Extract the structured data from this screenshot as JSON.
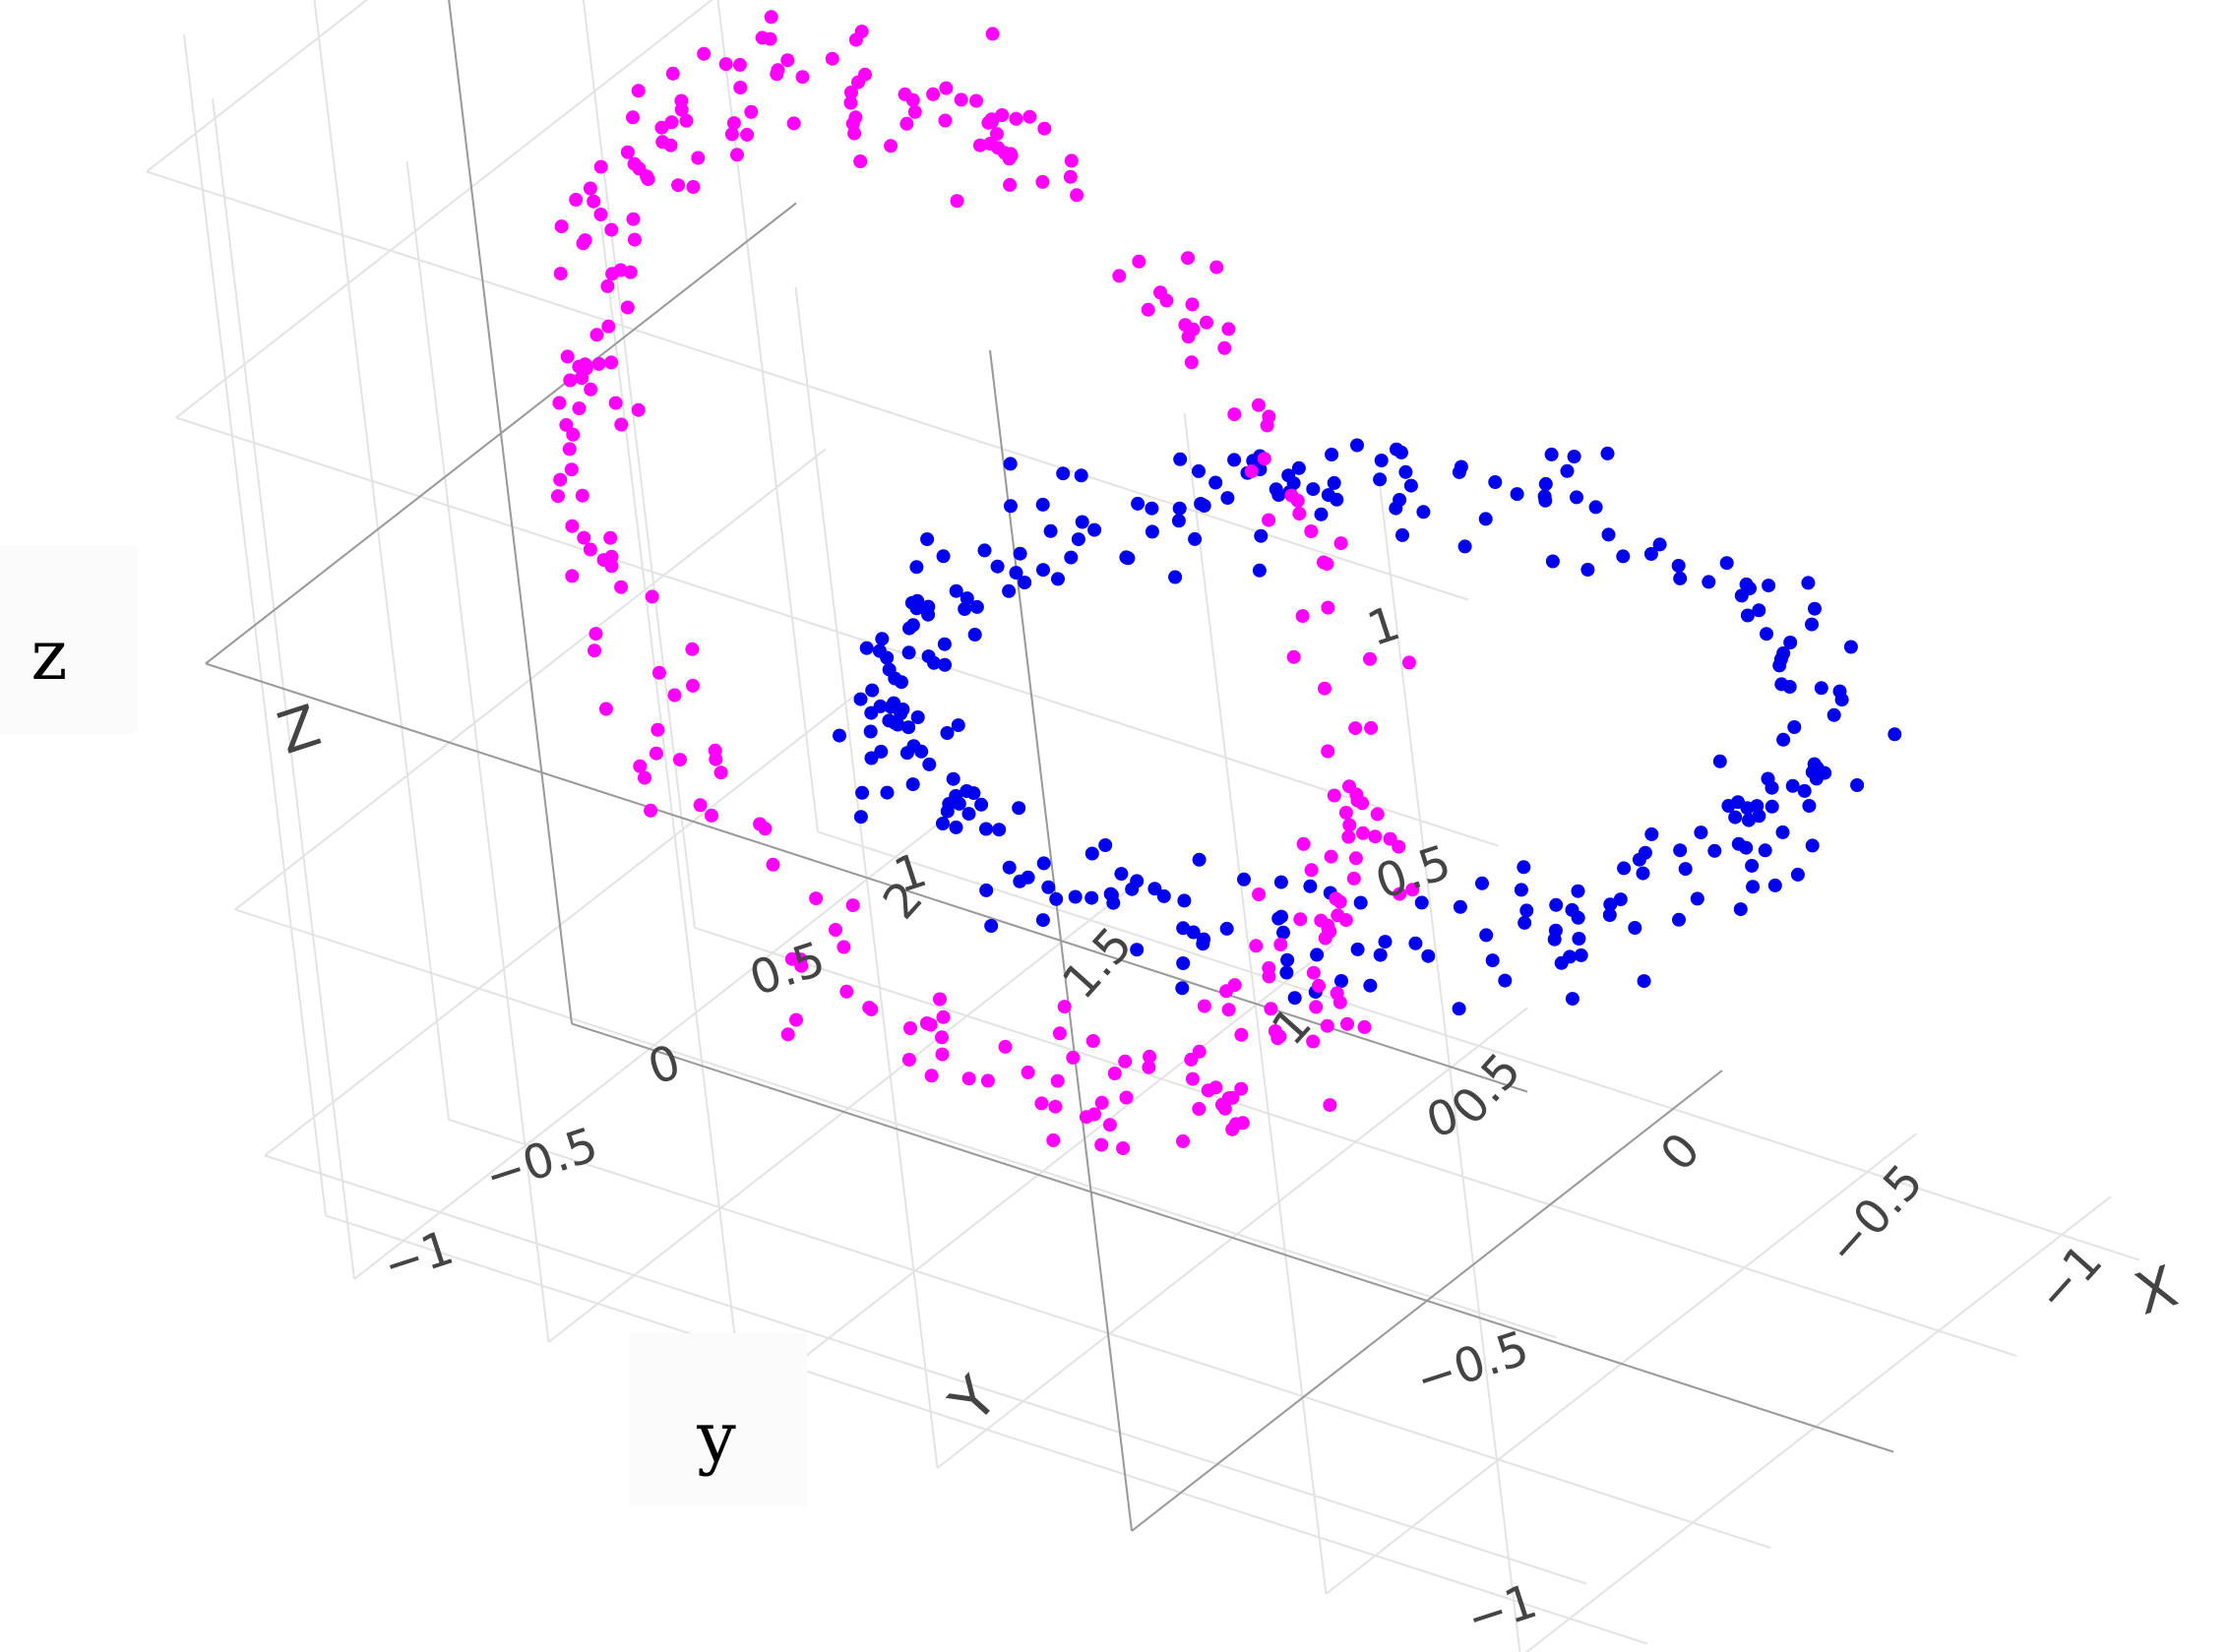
{
  "chart_data": {
    "type": "scatter3d",
    "axes": {
      "x": {
        "title": "X",
        "ticks": [
          -1,
          -0.5,
          0,
          0.5,
          1
        ],
        "tick_labels": [
          "−1",
          "−0.5",
          "0",
          "0.5",
          "1"
        ],
        "range": [
          -1.2,
          1.2
        ]
      },
      "y": {
        "title": "Y",
        "ticks": [
          -1,
          -0.5,
          0,
          0.5,
          1,
          1.5,
          2
        ],
        "tick_labels": [
          "−1",
          "−0.5",
          "0",
          "0.5",
          "1",
          "1.5",
          "2"
        ],
        "range": [
          -1.2,
          2.2
        ]
      },
      "z": {
        "title": "Z",
        "ticks": [
          -1,
          -0.5,
          0,
          0.5,
          1
        ],
        "tick_labels": [
          "−1",
          "−0.5",
          "0",
          "0.5",
          "1"
        ],
        "range": [
          -1.2,
          1.2
        ]
      }
    },
    "grid": true,
    "series": [
      {
        "color": "#0000ee",
        "shape": "ring",
        "plane": "x-y",
        "center": [
          0,
          0,
          0
        ],
        "radius": 1.0,
        "noise": 0.1,
        "n_points": 300
      },
      {
        "color": "#ff00ff",
        "shape": "ring",
        "plane": "y-z",
        "center": [
          0,
          1,
          0
        ],
        "radius": 1.0,
        "noise": 0.1,
        "n_points": 300
      }
    ]
  },
  "overlay_labels": {
    "z_label": "z",
    "y_label": "y"
  }
}
